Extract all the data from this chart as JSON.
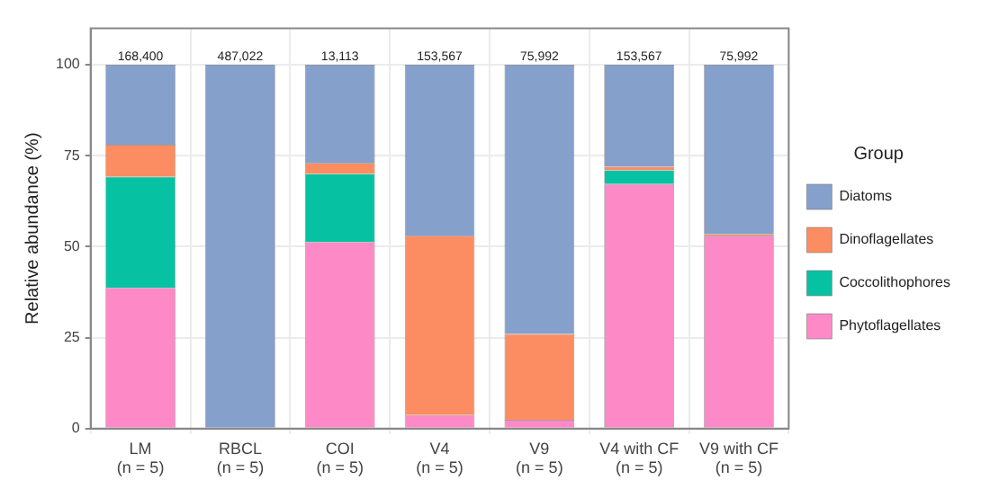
{
  "chart_data": {
    "type": "bar",
    "ylabel": "Relative abundance (%)",
    "legend_title": "Group",
    "categories": [
      "LM\n(n = 5)",
      "RBCL\n(n = 5)",
      "COI\n(n = 5)",
      "V4\n(n = 5)",
      "V9\n(n = 5)",
      "V4 with CF\n(n = 5)",
      "V9 with CF\n(n = 5)"
    ],
    "series": [
      {
        "name": "Phytoflagellates",
        "color": "#fd8ac6",
        "values": [
          38.7,
          0,
          51.3,
          3.7,
          2.4,
          67.2,
          53
        ]
      },
      {
        "name": "Coccolithophores",
        "color": "#06c2a2",
        "values": [
          30.5,
          0,
          18.7,
          0,
          0,
          3.8,
          0
        ]
      },
      {
        "name": "Dinoflagellates",
        "color": "#fc8d62",
        "values": [
          8.8,
          0,
          3,
          49.3,
          23.6,
          1,
          0.5
        ]
      },
      {
        "name": "Diatoms",
        "color": "#86a0cc",
        "values": [
          22,
          100,
          27,
          47,
          74,
          28,
          46.5
        ]
      }
    ],
    "stacked": true,
    "annotations": [
      {
        "text": "168,400",
        "x": "LM\n(n = 5)",
        "y": 100
      },
      {
        "text": "487,022",
        "x": "RBCL\n(n = 5)",
        "y": 100
      },
      {
        "text": "13,113",
        "x": "COI\n(n = 5)",
        "y": 100
      },
      {
        "text": "153,567",
        "x": "V4\n(n = 5)",
        "y": 100
      },
      {
        "text": "75,992",
        "x": "V9\n(n = 5)",
        "y": 100
      },
      {
        "text": "153,567",
        "x": "V4 with CF\n(n = 5)",
        "y": 100
      },
      {
        "text": "75,992",
        "x": "V9 with CF\n(n = 5)",
        "y": 100
      }
    ],
    "ylim": [
      0,
      110
    ],
    "yticks": [
      0,
      25,
      50,
      75,
      100
    ],
    "grid": true,
    "legend": "right"
  }
}
